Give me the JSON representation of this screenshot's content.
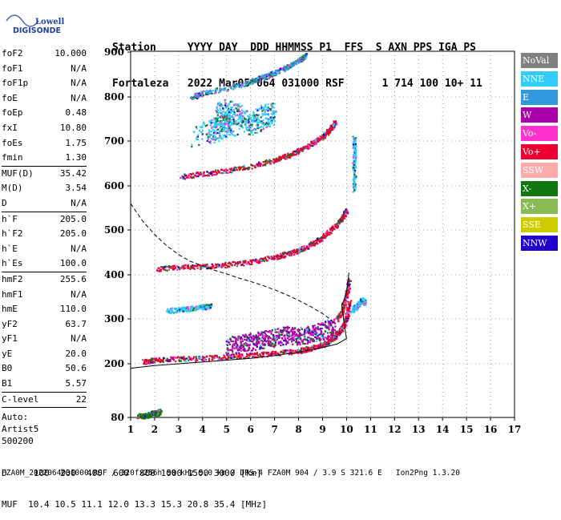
{
  "logo": {
    "line1": "Lowell",
    "line2": "DIGISONDE"
  },
  "header": {
    "labels": [
      "Station",
      "YYYY",
      "DAY",
      "DDD",
      "HHMMSS",
      "P1",
      "FFS",
      "S",
      "AXN",
      "PPS",
      "IGA",
      "PS"
    ],
    "values": [
      "Fortaleza",
      "2022",
      "Mar05",
      "064",
      "031000",
      "RSF",
      "",
      "1",
      "714",
      "100",
      "10+",
      "11"
    ]
  },
  "params": [
    {
      "group": [
        {
          "name": "foF2",
          "value": "10.000"
        },
        {
          "name": "foF1",
          "value": "N/A"
        },
        {
          "name": "foF1p",
          "value": "N/A"
        },
        {
          "name": "foE",
          "value": "N/A"
        },
        {
          "name": "foEp",
          "value": "0.48"
        },
        {
          "name": "fxI",
          "value": "10.80"
        },
        {
          "name": "foEs",
          "value": "1.75"
        },
        {
          "name": "fmin",
          "value": "1.30"
        }
      ]
    },
    {
      "group": [
        {
          "name": "MUF(D)",
          "value": "35.42"
        },
        {
          "name": "M(D)",
          "value": "3.54"
        },
        {
          "name": "D",
          "value": "N/A"
        }
      ]
    },
    {
      "group": [
        {
          "name": "h`F",
          "value": "205.0"
        },
        {
          "name": "h`F2",
          "value": "205.0"
        },
        {
          "name": "h`E",
          "value": "N/A"
        },
        {
          "name": "h`Es",
          "value": "100.0"
        }
      ]
    },
    {
      "group": [
        {
          "name": "hmF2",
          "value": "255.6"
        },
        {
          "name": "hmF1",
          "value": "N/A"
        },
        {
          "name": "hmE",
          "value": "110.0"
        },
        {
          "name": "yF2",
          "value": "63.7"
        },
        {
          "name": "yF1",
          "value": "N/A"
        },
        {
          "name": "yE",
          "value": "20.0"
        },
        {
          "name": "B0",
          "value": "50.6"
        },
        {
          "name": "B1",
          "value": "5.57"
        }
      ]
    },
    {
      "group": [
        {
          "name": "C-level",
          "value": "22"
        }
      ]
    }
  ],
  "autoscale": [
    "Auto:",
    "Artist5",
    "500200"
  ],
  "legend": [
    {
      "label": "NoVal",
      "color": "#808080"
    },
    {
      "label": "NNE",
      "color": "#33ccff"
    },
    {
      "label": "E",
      "color": "#3399dd"
    },
    {
      "label": "W",
      "color": "#aa00aa"
    },
    {
      "label": "Vo-",
      "color": "#ff33cc"
    },
    {
      "label": "Vo+",
      "color": "#ee0033"
    },
    {
      "label": "SSW",
      "color": "#ffaaaa"
    },
    {
      "label": "X-",
      "color": "#117711"
    },
    {
      "label": "X+",
      "color": "#88bb55"
    },
    {
      "label": "SSE",
      "color": "#cccc00"
    },
    {
      "label": "NNW",
      "color": "#2200cc"
    }
  ],
  "footer": {
    "line1": "D     100  200  400  600  800 1000 1500 3000 [km]",
    "line2": "MUF  10.4 10.5 11.1 12.0 13.3 15.3 20.8 35.4 [MHz]",
    "line3": "FZA0M_2022064031000.RSF / 320fx256h 50 kHz 5.0 km / DPS-4 FZA0M 904 / 3.9 S 321.6 E   Ion2Png 1.3.20"
  },
  "chart_data": {
    "type": "scatter",
    "xlim": [
      1,
      17
    ],
    "ylim": [
      80,
      900
    ],
    "x_ticks": [
      1,
      2,
      3,
      4,
      5,
      6,
      7,
      8,
      9,
      10,
      11,
      12,
      13,
      14,
      15,
      16,
      17
    ],
    "y_ticks": [
      80,
      200,
      300,
      400,
      500,
      600,
      700,
      800,
      900
    ],
    "grid": true,
    "legend_placement": "right",
    "traces": [
      {
        "name": "Es",
        "color_index": 7,
        "points": [
          [
            1.3,
            85
          ],
          [
            1.5,
            84
          ],
          [
            1.7,
            86
          ],
          [
            1.9,
            90
          ],
          [
            2.0,
            92
          ],
          [
            2.1,
            88
          ],
          [
            2.2,
            95
          ]
        ]
      },
      {
        "name": "F-trace-1",
        "color_index": 5,
        "points": [
          [
            1.5,
            205
          ],
          [
            2,
            210
          ],
          [
            3,
            212
          ],
          [
            4,
            214
          ],
          [
            5,
            216
          ],
          [
            6,
            220
          ],
          [
            7,
            224
          ],
          [
            8,
            230
          ],
          [
            8.5,
            236
          ],
          [
            9,
            244
          ],
          [
            9.3,
            254
          ],
          [
            9.5,
            262
          ],
          [
            9.7,
            274
          ],
          [
            9.9,
            290
          ],
          [
            10.0,
            310
          ],
          [
            10.1,
            340
          ]
        ]
      },
      {
        "name": "F-spread",
        "color_index": 3,
        "points": [
          [
            5.0,
            240
          ],
          [
            5.5,
            245
          ],
          [
            6,
            250
          ],
          [
            6.5,
            255
          ],
          [
            7,
            260
          ],
          [
            7.5,
            265
          ],
          [
            8,
            262
          ],
          [
            8.5,
            268
          ],
          [
            9,
            275
          ],
          [
            9.5,
            285
          ]
        ]
      },
      {
        "name": "F-trace-2",
        "color_index": 5,
        "points": [
          [
            2.1,
            415
          ],
          [
            3,
            418
          ],
          [
            4,
            420
          ],
          [
            5,
            424
          ],
          [
            6,
            430
          ],
          [
            7,
            440
          ],
          [
            7.5,
            448
          ],
          [
            8,
            455
          ],
          [
            8.5,
            468
          ],
          [
            9,
            485
          ],
          [
            9.5,
            510
          ],
          [
            9.8,
            530
          ],
          [
            10,
            545
          ]
        ]
      },
      {
        "name": "F-trace-3",
        "color_index": 5,
        "points": [
          [
            3.1,
            622
          ],
          [
            4,
            628
          ],
          [
            5,
            635
          ],
          [
            6,
            645
          ],
          [
            7,
            658
          ],
          [
            7.5,
            668
          ],
          [
            8,
            680
          ],
          [
            8.5,
            695
          ],
          [
            9,
            712
          ],
          [
            9.3,
            728
          ],
          [
            9.5,
            745
          ]
        ]
      },
      {
        "name": "F-trace-4",
        "color_index": 2,
        "points": [
          [
            3.5,
            800
          ],
          [
            4,
            810
          ],
          [
            5,
            820
          ],
          [
            6,
            835
          ],
          [
            6.5,
            845
          ],
          [
            7,
            855
          ],
          [
            7.5,
            868
          ],
          [
            8,
            882
          ],
          [
            8.3,
            895
          ]
        ]
      },
      {
        "name": "O-trace-red",
        "color_index": 5,
        "points": [
          [
            9.6,
            300
          ],
          [
            9.8,
            320
          ],
          [
            10.0,
            360
          ],
          [
            10.1,
            390
          ]
        ]
      },
      {
        "name": "X-trace",
        "color_index": 1,
        "points": [
          [
            10.2,
            320
          ],
          [
            10.4,
            330
          ],
          [
            10.6,
            345
          ],
          [
            10.8,
            335
          ]
        ]
      },
      {
        "name": "E-layer",
        "color_index": 1,
        "points": [
          [
            2.5,
            320
          ],
          [
            3,
            322
          ],
          [
            3.5,
            325
          ],
          [
            4,
            328
          ],
          [
            4.3,
            330
          ]
        ]
      },
      {
        "name": "upper-spread",
        "color_index": 1,
        "points": [
          [
            4.5,
            760
          ],
          [
            5,
            770
          ],
          [
            5.5,
            760
          ],
          [
            6,
            740
          ],
          [
            6.5,
            755
          ],
          [
            7,
            765
          ],
          [
            4.2,
            720
          ],
          [
            4.8,
            735
          ],
          [
            5.2,
            745
          ],
          [
            3.5,
            710
          ]
        ]
      },
      {
        "name": "vertical-line",
        "color_index": 1,
        "points": [
          [
            10.3,
            590
          ],
          [
            10.3,
            640
          ],
          [
            10.3,
            680
          ],
          [
            10.3,
            710
          ]
        ]
      }
    ],
    "profile_curve": [
      [
        1,
        190
      ],
      [
        2,
        196
      ],
      [
        3,
        200
      ],
      [
        4,
        204
      ],
      [
        5,
        208
      ],
      [
        6,
        212
      ],
      [
        7,
        218
      ],
      [
        8,
        226
      ],
      [
        9,
        236
      ],
      [
        9.6,
        244
      ],
      [
        10.0,
        256
      ],
      [
        9.9,
        290
      ],
      [
        9.8,
        330
      ],
      [
        10.0,
        360
      ],
      [
        10.1,
        405
      ]
    ],
    "muf_curve": [
      [
        1,
        560
      ],
      [
        1.5,
        520
      ],
      [
        2,
        490
      ],
      [
        2.5,
        465
      ],
      [
        3,
        445
      ],
      [
        3.5,
        430
      ],
      [
        4,
        420
      ],
      [
        4.5,
        410
      ],
      [
        5,
        402
      ],
      [
        5.5,
        393
      ],
      [
        6,
        385
      ],
      [
        6.5,
        376
      ],
      [
        7,
        366
      ],
      [
        7.5,
        355
      ],
      [
        8,
        342
      ],
      [
        8.5,
        328
      ],
      [
        9,
        312
      ],
      [
        9.3,
        300
      ],
      [
        9.5,
        290
      ]
    ]
  }
}
